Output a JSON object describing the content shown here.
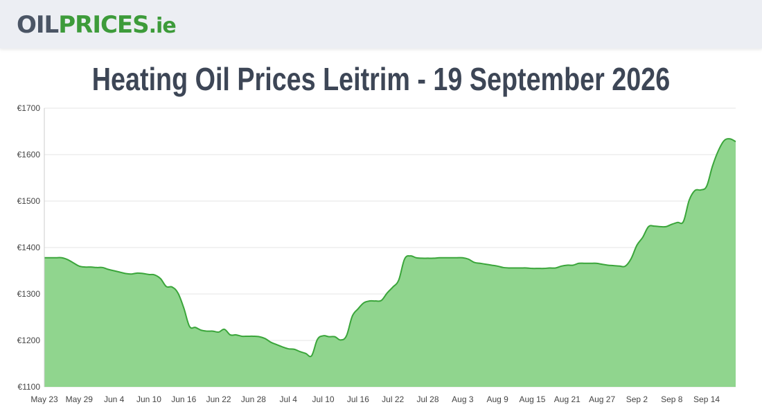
{
  "site": {
    "logo_part1": "OIL",
    "logo_part2": "PRICES",
    "logo_part3": ".ie"
  },
  "page": {
    "title": "Heating Oil Prices Leitrim - 19 September 2026"
  },
  "colors": {
    "line": "#3aa53a",
    "fill": "#90d58e",
    "grid": "#e6e6e6",
    "header_bg": "#eceef3",
    "logo_dark": "#4b5565",
    "logo_green": "#3d9b3a"
  },
  "chart_data": {
    "type": "area",
    "title": "",
    "xlabel": "",
    "ylabel": "",
    "ylim": [
      1100,
      1700
    ],
    "y_ticks": [
      1100,
      1200,
      1300,
      1400,
      1500,
      1600,
      1700
    ],
    "y_tick_labels": [
      "€1100",
      "€1200",
      "€1300",
      "€1400",
      "€1500",
      "€1600",
      "€1700"
    ],
    "x_tick_labels": [
      "May 23",
      "May 29",
      "Jun 4",
      "Jun 10",
      "Jun 16",
      "Jun 22",
      "Jun 28",
      "Jul 4",
      "Jul 10",
      "Jul 16",
      "Jul 22",
      "Jul 28",
      "Aug 3",
      "Aug 9",
      "Aug 15",
      "Aug 21",
      "Aug 27",
      "Sep 2",
      "Sep 8",
      "Sep 14"
    ],
    "x_start": "May 23",
    "x_end": "Sep 19",
    "grid": true,
    "legend": "none",
    "series": [
      {
        "x": [
          "May 23",
          "May 24",
          "May 25",
          "May 26",
          "May 27",
          "May 28",
          "May 29",
          "May 30",
          "May 31",
          "Jun 1",
          "Jun 2",
          "Jun 3",
          "Jun 4",
          "Jun 5",
          "Jun 6",
          "Jun 7",
          "Jun 8",
          "Jun 9",
          "Jun 10",
          "Jun 11",
          "Jun 12",
          "Jun 13",
          "Jun 14",
          "Jun 15",
          "Jun 16",
          "Jun 17",
          "Jun 18",
          "Jun 19",
          "Jun 20",
          "Jun 21",
          "Jun 22",
          "Jun 23",
          "Jun 24",
          "Jun 25",
          "Jun 26",
          "Jun 27",
          "Jun 28",
          "Jun 29",
          "Jun 30",
          "Jul 1",
          "Jul 2",
          "Jul 3",
          "Jul 4",
          "Jul 5",
          "Jul 6",
          "Jul 7",
          "Jul 8",
          "Jul 9",
          "Jul 10",
          "Jul 11",
          "Jul 12",
          "Jul 13",
          "Jul 14",
          "Jul 15",
          "Jul 16",
          "Jul 17",
          "Jul 18",
          "Jul 19",
          "Jul 20",
          "Jul 21",
          "Jul 22",
          "Jul 23",
          "Jul 24",
          "Jul 25",
          "Jul 26",
          "Jul 27",
          "Jul 28",
          "Jul 29",
          "Jul 30",
          "Jul 31",
          "Aug 1",
          "Aug 2",
          "Aug 3",
          "Aug 4",
          "Aug 5",
          "Aug 6",
          "Aug 7",
          "Aug 8",
          "Aug 9",
          "Aug 10",
          "Aug 11",
          "Aug 12",
          "Aug 13",
          "Aug 14",
          "Aug 15",
          "Aug 16",
          "Aug 17",
          "Aug 18",
          "Aug 19",
          "Aug 20",
          "Aug 21",
          "Aug 22",
          "Aug 23",
          "Aug 24",
          "Aug 25",
          "Aug 26",
          "Aug 27",
          "Aug 28",
          "Aug 29",
          "Aug 30",
          "Aug 31",
          "Sep 1",
          "Sep 2",
          "Sep 3",
          "Sep 4",
          "Sep 5",
          "Sep 6",
          "Sep 7",
          "Sep 8",
          "Sep 9",
          "Sep 10",
          "Sep 11",
          "Sep 12",
          "Sep 13",
          "Sep 14",
          "Sep 15",
          "Sep 16",
          "Sep 17",
          "Sep 18",
          "Sep 19"
        ],
        "values": [
          1378,
          1378,
          1378,
          1378,
          1374,
          1367,
          1360,
          1358,
          1358,
          1357,
          1357,
          1353,
          1350,
          1347,
          1344,
          1343,
          1345,
          1344,
          1342,
          1341,
          1333,
          1316,
          1315,
          1302,
          1270,
          1230,
          1228,
          1222,
          1220,
          1220,
          1218,
          1224,
          1212,
          1212,
          1209,
          1209,
          1209,
          1208,
          1204,
          1196,
          1191,
          1186,
          1182,
          1181,
          1176,
          1172,
          1167,
          1202,
          1210,
          1208,
          1208,
          1201,
          1210,
          1252,
          1268,
          1281,
          1285,
          1285,
          1286,
          1302,
          1315,
          1330,
          1375,
          1382,
          1378,
          1377,
          1377,
          1377,
          1378,
          1378,
          1378,
          1378,
          1378,
          1375,
          1368,
          1366,
          1364,
          1362,
          1360,
          1357,
          1356,
          1356,
          1356,
          1356,
          1355,
          1355,
          1355,
          1356,
          1356,
          1360,
          1362,
          1362,
          1366,
          1366,
          1366,
          1366,
          1364,
          1362,
          1361,
          1360,
          1360,
          1376,
          1405,
          1422,
          1445,
          1446,
          1445,
          1445,
          1450,
          1454,
          1456,
          1502,
          1523,
          1524,
          1532,
          1575,
          1608,
          1630,
          1634,
          1628
        ]
      }
    ]
  }
}
